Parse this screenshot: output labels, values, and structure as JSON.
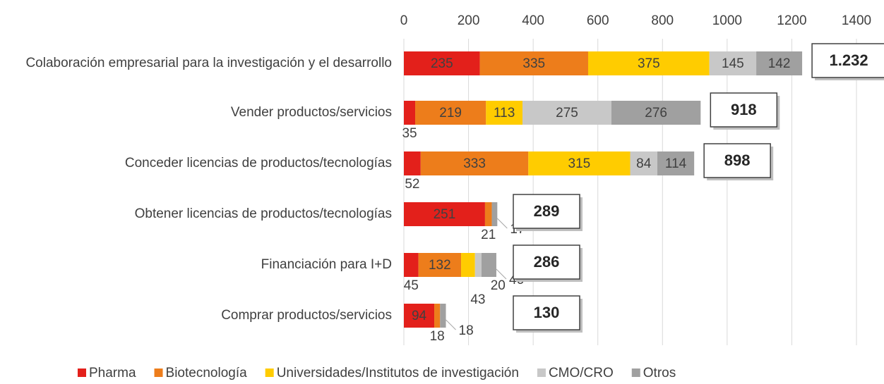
{
  "chart_data": {
    "type": "bar",
    "orientation": "horizontal",
    "stacked": true,
    "categories": [
      "Colaboración empresarial para la investigación y el desarrollo",
      "Vender productos/servicios",
      "Conceder licencias de productos/tecnologías",
      "Obtener licencias de productos/tecnologías",
      "Financiación para I+D",
      "Comprar productos/servicios"
    ],
    "series": [
      {
        "name": "Pharma",
        "color": "#e3201b",
        "values": [
          235,
          35,
          52,
          251,
          45,
          94
        ]
      },
      {
        "name": "Biotecnología",
        "color": "#ed7d1b",
        "values": [
          335,
          219,
          333,
          21,
          132,
          18
        ]
      },
      {
        "name": "Universidades/Institutos de investigación",
        "color": "#ffcc00",
        "values": [
          375,
          113,
          315,
          null,
          43,
          null
        ]
      },
      {
        "name": "CMO/CRO",
        "color": "#c8c8c8",
        "values": [
          145,
          275,
          84,
          null,
          20,
          null
        ]
      },
      {
        "name": "Otros",
        "color": "#a0a0a0",
        "values": [
          142,
          276,
          114,
          17,
          46,
          18
        ]
      }
    ],
    "totals": [
      {
        "value": 1232,
        "label": "1.232"
      },
      918,
      898,
      289,
      286,
      130
    ],
    "xlim": [
      0,
      1400
    ],
    "xticks": [
      0,
      200,
      400,
      600,
      800,
      1000,
      1200,
      1400
    ],
    "grid": true,
    "legend": "bottom"
  }
}
